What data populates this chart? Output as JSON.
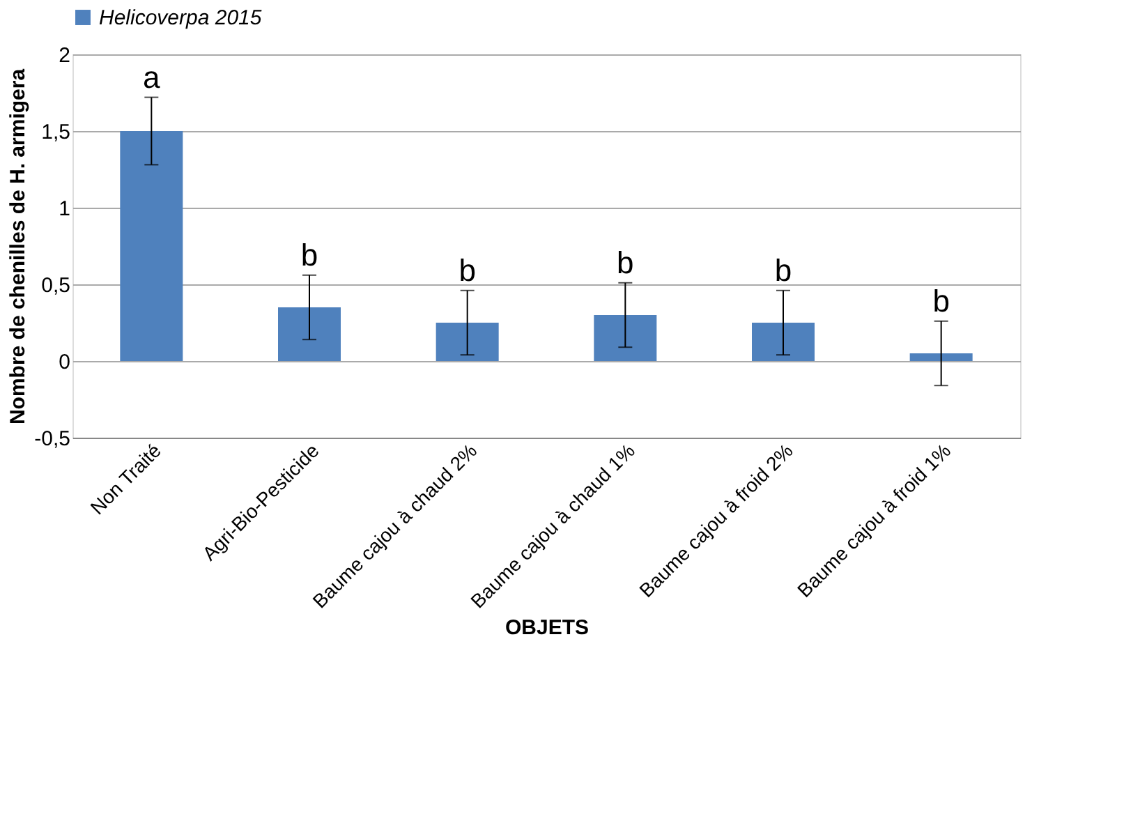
{
  "chart_data": {
    "type": "bar",
    "categories": [
      "Non Traité",
      "Agri-Bio-Pesticide",
      "Baume cajou à chaud 2%",
      "Baume cajou à chaud 1%",
      "Baume cajou à froid 2%",
      "Baume cajou à froid 1%"
    ],
    "series": [
      {
        "name": "Helicoverpa 2015",
        "color": "#4f81bd",
        "values": [
          1.5,
          0.35,
          0.25,
          0.3,
          0.25,
          0.05
        ],
        "errors": [
          0.22,
          0.21,
          0.21,
          0.21,
          0.21,
          0.21
        ]
      }
    ],
    "xlabel": "OBJETS",
    "ylabel": "Nombre de chenilles de H. armigera",
    "ylim": [
      -0.5,
      2
    ],
    "yticks": [
      {
        "value": -0.5,
        "label": "-0,5"
      },
      0,
      {
        "value": 0.5,
        "label": "0,5"
      },
      1,
      {
        "value": 1.5,
        "label": "1,5"
      },
      2
    ],
    "grid": "y",
    "legend": "top",
    "annotations": [
      "a",
      "b",
      "b",
      "b",
      "b",
      "b"
    ]
  }
}
